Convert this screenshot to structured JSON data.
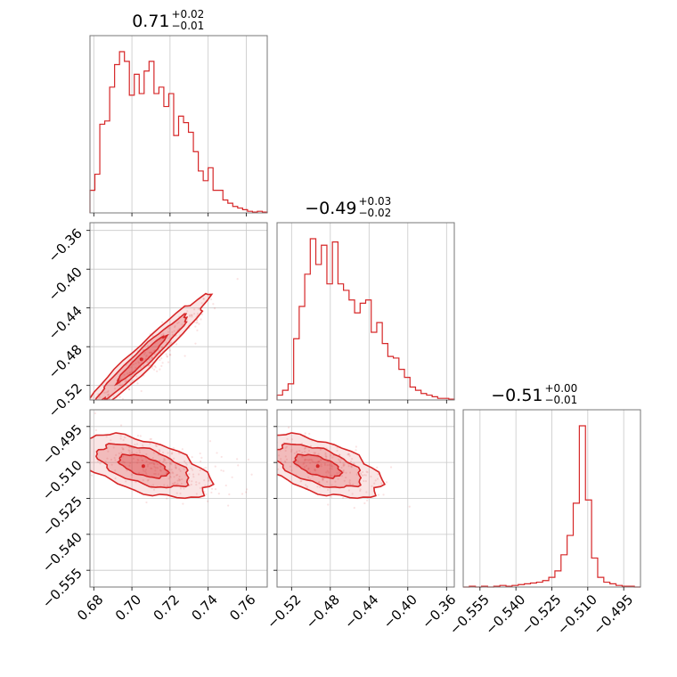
{
  "chart_data": {
    "type": "corner",
    "color": "#d62728",
    "parameters": [
      {
        "range": [
          0.678,
          0.771
        ],
        "ticks": [
          0.68,
          0.7,
          0.72,
          0.74,
          0.76
        ],
        "tick_labels": [
          "0.68",
          "0.70",
          "0.72",
          "0.74",
          "0.76"
        ],
        "title": {
          "median": "0.71",
          "upper": "+0.02",
          "lower": "−0.01"
        },
        "histogram": [
          0.14,
          0.24,
          0.55,
          0.57,
          0.78,
          0.92,
          1.0,
          0.94,
          0.73,
          0.86,
          0.74,
          0.88,
          0.94,
          0.74,
          0.78,
          0.66,
          0.74,
          0.48,
          0.6,
          0.56,
          0.5,
          0.38,
          0.26,
          0.2,
          0.28,
          0.14,
          0.14,
          0.08,
          0.06,
          0.04,
          0.03,
          0.02,
          0.01,
          0.005,
          0.01,
          0.005
        ]
      },
      {
        "range": [
          -0.535,
          -0.352
        ],
        "ticks": [
          -0.52,
          -0.48,
          -0.44,
          -0.4,
          -0.36
        ],
        "tick_labels": [
          "−0.52",
          "−0.48",
          "−0.44",
          "−0.40",
          "−0.36"
        ],
        "title": {
          "median": "−0.49",
          "upper": "+0.03",
          "lower": "−0.02"
        },
        "histogram": [
          0.03,
          0.06,
          0.1,
          0.38,
          0.58,
          0.78,
          1.0,
          0.84,
          0.96,
          0.72,
          0.98,
          0.72,
          0.68,
          0.62,
          0.54,
          0.6,
          0.62,
          0.42,
          0.48,
          0.35,
          0.27,
          0.26,
          0.19,
          0.14,
          0.08,
          0.06,
          0.04,
          0.03,
          0.02,
          0.01,
          0.01,
          0.005
        ]
      },
      {
        "range": [
          -0.562,
          -0.488
        ],
        "ticks": [
          -0.555,
          -0.54,
          -0.525,
          -0.51,
          -0.495
        ],
        "tick_labels": [
          "−0.555",
          "−0.540",
          "−0.525",
          "−0.510",
          "−0.495"
        ],
        "title": {
          "median": "−0.51",
          "upper": "+0.00",
          "lower": "−0.01"
        },
        "histogram": [
          0.0,
          0.005,
          0.0,
          0.005,
          0.0,
          0.005,
          0.01,
          0.005,
          0.01,
          0.015,
          0.02,
          0.025,
          0.03,
          0.04,
          0.06,
          0.1,
          0.2,
          0.32,
          0.52,
          1.0,
          0.54,
          0.18,
          0.06,
          0.03,
          0.02,
          0.01,
          0.005,
          0.005,
          0.0
        ]
      }
    ],
    "correlations": [
      [
        0,
        1,
        0.97
      ],
      [
        0,
        2,
        -0.55
      ],
      [
        1,
        2,
        -0.55
      ]
    ],
    "grid": true,
    "contours": true
  }
}
